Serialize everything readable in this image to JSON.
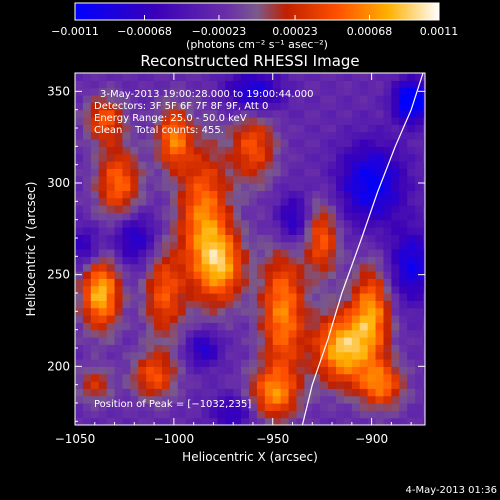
{
  "colorbar": {
    "tick_labels": [
      "−0.0011",
      "−0.00068",
      "−0.00023",
      "0.00023",
      "0.00068",
      "0.0011"
    ],
    "tick_values": [
      -0.0011,
      -0.00068,
      -0.00023,
      0.00023,
      0.00068,
      0.0011
    ],
    "range": [
      -0.0011,
      0.0011
    ],
    "units_label": "(photons cm⁻² s⁻¹ asec⁻²)"
  },
  "footer": {
    "timestamp": "4-May-2013 01:36"
  },
  "chart_data": {
    "type": "heatmap",
    "title": "Reconstructed RHESSI Image",
    "xlabel": "Heliocentric X (arcsec)",
    "ylabel": "Heliocentric Y (arcsec)",
    "xlim": [
      -1050,
      -873
    ],
    "ylim": [
      168,
      360
    ],
    "x_ticks": [
      -1050,
      -1000,
      -950,
      -900
    ],
    "x_tick_labels": [
      "−1050",
      "−1000",
      "−950",
      "−900"
    ],
    "y_ticks": [
      200,
      250,
      300,
      350
    ],
    "y_tick_labels": [
      "200",
      "250",
      "300",
      "350"
    ],
    "grid": false,
    "annotations": {
      "time_range": "3-May-2013 19:00:28.000 to 19:00:44.000",
      "detectors": "Detectors: 3F 5F 6F 7F 8F 9F, Att 0",
      "energy_range": "Energy Range: 25.0 - 50.0 keV",
      "clean": "Clean    Total counts: 455.",
      "peak": "Position of Peak = [−1032,235]"
    },
    "peak_position": [
      -1032,
      235
    ],
    "limb_curve": {
      "x": [
        -935,
        -930,
        -922,
        -915,
        -905,
        -897,
        -888,
        -880,
        -874
      ],
      "y": [
        168,
        190,
        215,
        240,
        270,
        295,
        320,
        340,
        360
      ]
    },
    "cell_size_arcsec": 4,
    "blobs": [
      {
        "x": -1037,
        "y": 240,
        "amp": 0.0011,
        "sx": 7,
        "sy": 14
      },
      {
        "x": -1028,
        "y": 300,
        "amp": 0.0008,
        "sx": 8,
        "sy": 14
      },
      {
        "x": -1035,
        "y": 335,
        "amp": 0.0007,
        "sx": 7,
        "sy": 9
      },
      {
        "x": -1005,
        "y": 240,
        "amp": 0.0007,
        "sx": 7,
        "sy": 18
      },
      {
        "x": -1000,
        "y": 325,
        "amp": 0.00085,
        "sx": 6,
        "sy": 12
      },
      {
        "x": -985,
        "y": 280,
        "amp": 0.0009,
        "sx": 9,
        "sy": 28
      },
      {
        "x": -975,
        "y": 255,
        "amp": 0.0008,
        "sx": 8,
        "sy": 14
      },
      {
        "x": -960,
        "y": 320,
        "amp": 0.0007,
        "sx": 8,
        "sy": 14
      },
      {
        "x": -945,
        "y": 230,
        "amp": 0.0009,
        "sx": 8,
        "sy": 25
      },
      {
        "x": -950,
        "y": 185,
        "amp": 0.0008,
        "sx": 9,
        "sy": 10
      },
      {
        "x": -925,
        "y": 270,
        "amp": 0.00075,
        "sx": 6,
        "sy": 14
      },
      {
        "x": -915,
        "y": 210,
        "amp": 0.0011,
        "sx": 10,
        "sy": 14
      },
      {
        "x": -900,
        "y": 230,
        "amp": 0.0009,
        "sx": 7,
        "sy": 18
      },
      {
        "x": -895,
        "y": 190,
        "amp": 0.0008,
        "sx": 8,
        "sy": 9
      },
      {
        "x": -1010,
        "y": 195,
        "amp": 0.0007,
        "sx": 8,
        "sy": 9
      },
      {
        "x": -1040,
        "y": 190,
        "amp": 0.0005,
        "sx": 6,
        "sy": 7
      },
      {
        "x": -960,
        "y": 350,
        "amp": -0.0007,
        "sx": 10,
        "sy": 8
      },
      {
        "x": -900,
        "y": 300,
        "amp": -0.0008,
        "sx": 12,
        "sy": 16
      },
      {
        "x": -880,
        "y": 345,
        "amp": -0.0011,
        "sx": 6,
        "sy": 8
      },
      {
        "x": -880,
        "y": 255,
        "amp": -0.0007,
        "sx": 8,
        "sy": 14
      },
      {
        "x": -1020,
        "y": 270,
        "amp": -0.0006,
        "sx": 8,
        "sy": 10
      },
      {
        "x": -940,
        "y": 280,
        "amp": -0.0006,
        "sx": 6,
        "sy": 10
      },
      {
        "x": -985,
        "y": 210,
        "amp": -0.0006,
        "sx": 6,
        "sy": 7
      },
      {
        "x": -970,
        "y": 175,
        "amp": -0.0005,
        "sx": 8,
        "sy": 7
      },
      {
        "x": -1045,
        "y": 265,
        "amp": -0.0005,
        "sx": 6,
        "sy": 8
      }
    ]
  }
}
